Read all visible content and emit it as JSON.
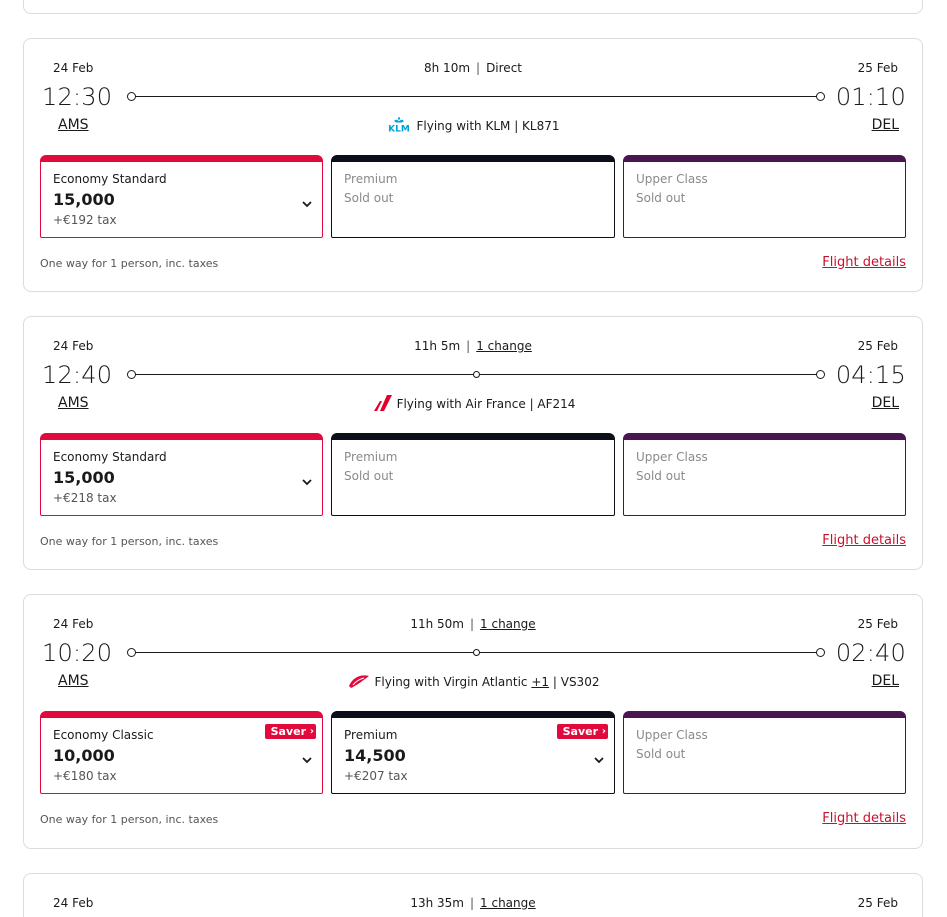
{
  "flights": [
    {
      "dep_date": "24 Feb",
      "arr_date": "25 Feb",
      "duration": "8h 10m",
      "stops": "Direct",
      "stops_is_link": false,
      "dep_time": "12:30",
      "arr_time": "01:10",
      "dep_code": "AMS",
      "arr_code": "DEL",
      "logo": "klm-logo-icon",
      "logo_text": "KLM",
      "carrier_text": "Flying with KLM",
      "carrier_plus": "",
      "flight_no": "KL871",
      "cabins": [
        {
          "type": "eco",
          "name": "Economy Standard",
          "price": "15,000",
          "tax": "+€192 tax",
          "saver": "",
          "sold": false
        },
        {
          "type": "prem",
          "name": "Premium",
          "sold_label": "Sold out",
          "sold": true
        },
        {
          "type": "upper",
          "name": "Upper Class",
          "sold_label": "Sold out",
          "sold": true
        }
      ],
      "note": "One way for 1 person, inc. taxes",
      "details_label": "Flight details"
    },
    {
      "dep_date": "24 Feb",
      "arr_date": "25 Feb",
      "duration": "11h 5m",
      "stops": "1 change",
      "stops_is_link": true,
      "dep_time": "12:40",
      "arr_time": "04:15",
      "dep_code": "AMS",
      "arr_code": "DEL",
      "logo": "air-france-logo-icon",
      "carrier_text": "Flying with Air France",
      "carrier_plus": "",
      "flight_no": "AF214",
      "cabins": [
        {
          "type": "eco",
          "name": "Economy Standard",
          "price": "15,000",
          "tax": "+€218 tax",
          "saver": "",
          "sold": false
        },
        {
          "type": "prem",
          "name": "Premium",
          "sold_label": "Sold out",
          "sold": true
        },
        {
          "type": "upper",
          "name": "Upper Class",
          "sold_label": "Sold out",
          "sold": true
        }
      ],
      "note": "One way for 1 person, inc. taxes",
      "details_label": "Flight details"
    },
    {
      "dep_date": "24 Feb",
      "arr_date": "25 Feb",
      "duration": "11h 50m",
      "stops": "1 change",
      "stops_is_link": true,
      "dep_time": "10:20",
      "arr_time": "02:40",
      "dep_code": "AMS",
      "arr_code": "DEL",
      "logo": "virgin-atlantic-logo-icon",
      "carrier_text": "Flying with Virgin Atlantic",
      "carrier_plus": "+1",
      "flight_no": "VS302",
      "cabins": [
        {
          "type": "eco",
          "name": "Economy Classic",
          "price": "10,000",
          "tax": "+€180 tax",
          "saver": "Saver",
          "sold": false
        },
        {
          "type": "prem",
          "name": "Premium",
          "price": "14,500",
          "tax": "+€207 tax",
          "saver": "Saver",
          "sold": false
        },
        {
          "type": "upper",
          "name": "Upper Class",
          "sold_label": "Sold out",
          "sold": true
        }
      ],
      "note": "One way for 1 person, inc. taxes",
      "details_label": "Flight details"
    }
  ],
  "partial_flight": {
    "dep_date": "24 Feb",
    "arr_date": "25 Feb",
    "duration": "13h 35m",
    "stops": "1 change"
  },
  "colors": {
    "economy": "#e10a3c",
    "premium": "#0b0f1a",
    "upper": "#4a1551",
    "link": "#c8102e"
  }
}
